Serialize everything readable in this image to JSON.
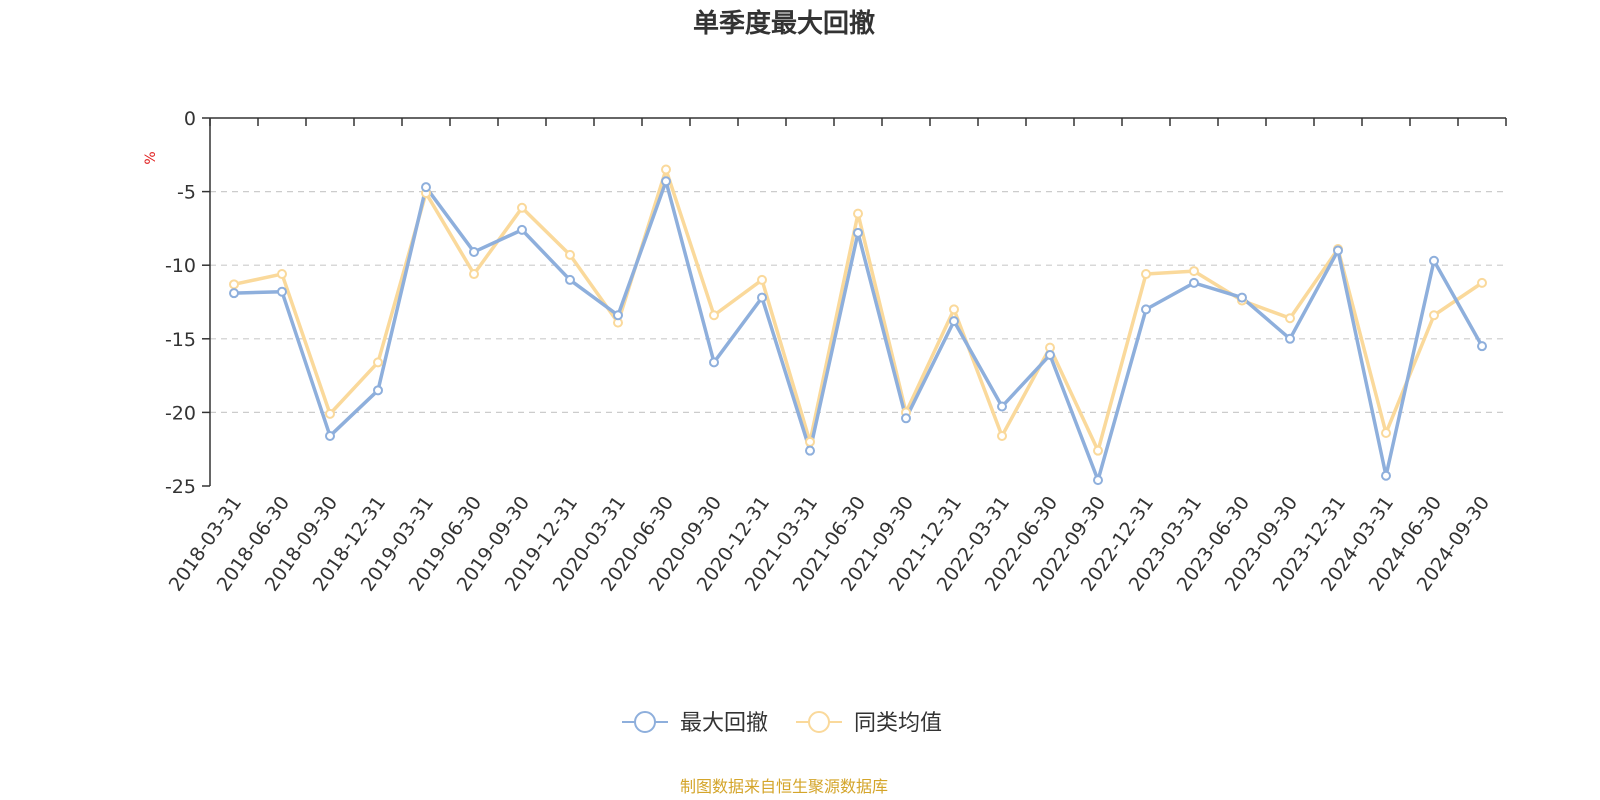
{
  "chart_data": {
    "type": "line",
    "title": "单季度最大回撤",
    "ylabel": "%",
    "ylim": [
      -25,
      0
    ],
    "yticks": [
      0,
      -5,
      -10,
      -15,
      -20,
      -25
    ],
    "grid": true,
    "legend_position": "bottom-center",
    "categories": [
      "2018-03-31",
      "2018-06-30",
      "2018-09-30",
      "2018-12-31",
      "2019-03-31",
      "2019-06-30",
      "2019-09-30",
      "2019-12-31",
      "2020-03-31",
      "2020-06-30",
      "2020-09-30",
      "2020-12-31",
      "2021-03-31",
      "2021-06-30",
      "2021-09-30",
      "2021-12-31",
      "2022-03-31",
      "2022-06-30",
      "2022-09-30",
      "2022-12-31",
      "2023-03-31",
      "2023-06-30",
      "2023-09-30",
      "2023-12-31",
      "2024-03-31",
      "2024-06-30",
      "2024-09-30"
    ],
    "series": [
      {
        "name": "最大回撤",
        "color": "#8eafdc",
        "values": [
          -11.9,
          -11.8,
          -21.6,
          -18.5,
          -4.7,
          -9.1,
          -7.6,
          -11.0,
          -13.4,
          -4.3,
          -16.6,
          -12.2,
          -22.6,
          -7.8,
          -20.4,
          -13.8,
          -19.6,
          -16.1,
          -24.6,
          -13.0,
          -11.2,
          -12.2,
          -15.0,
          -9.0,
          -24.3,
          -9.7,
          -15.5
        ]
      },
      {
        "name": "同类均值",
        "color": "#fad99b",
        "values": [
          -11.3,
          -10.6,
          -20.1,
          -16.6,
          -5.1,
          -10.6,
          -6.1,
          -9.3,
          -13.9,
          -3.5,
          -13.4,
          -11.0,
          -22.0,
          -6.5,
          -20.0,
          -13.0,
          -21.6,
          -15.6,
          -22.6,
          -10.6,
          -10.4,
          -12.4,
          -13.6,
          -8.9,
          -21.4,
          -13.4,
          -11.2
        ]
      }
    ]
  },
  "footer": {
    "source_text": "制图数据来自恒生聚源数据库",
    "source_color": "#d4a52a",
    "unit_color": "#e02020"
  }
}
